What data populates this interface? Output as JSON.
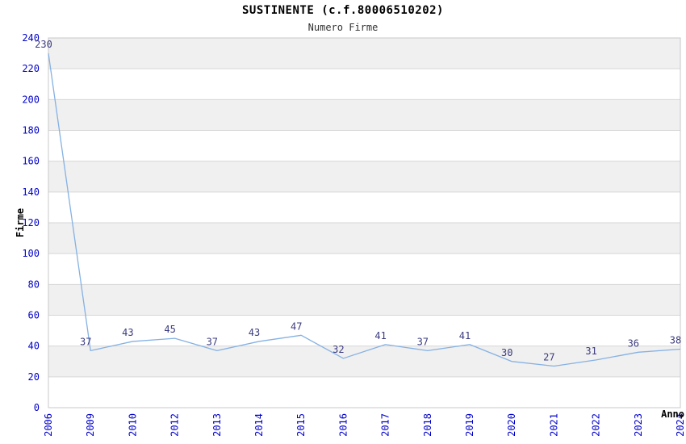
{
  "page": {
    "title": "SUSTINENTE (c.f.80006510202)",
    "subtitle": "Numero Firme"
  },
  "chart_data": {
    "type": "line",
    "title": "SUSTINENTE (c.f.80006510202)",
    "subtitle": "Numero Firme",
    "xlabel": "Anno",
    "ylabel": "Firme",
    "categories": [
      "2006",
      "2009",
      "2010",
      "2012",
      "2013",
      "2014",
      "2015",
      "2016",
      "2017",
      "2018",
      "2019",
      "2020",
      "2021",
      "2022",
      "2023",
      "2024"
    ],
    "values": [
      230,
      37,
      43,
      45,
      37,
      43,
      47,
      32,
      41,
      37,
      41,
      30,
      27,
      31,
      36,
      38
    ],
    "ylim": [
      0,
      240
    ],
    "ytick_step": 20,
    "grid": "horizontal-bands-alternating",
    "legend": "none",
    "data_labels": true,
    "colors": {
      "line": "#85b1e3",
      "tick_label": "#0000cc",
      "data_label": "#3b3b80",
      "band_grey": "#f0f0f0",
      "grid_line": "#d6d6d6",
      "plot_border": "#c8c8c8",
      "title": "#000000",
      "subtitle": "#333333",
      "axis_label": "#000000",
      "background": "#ffffff"
    }
  }
}
